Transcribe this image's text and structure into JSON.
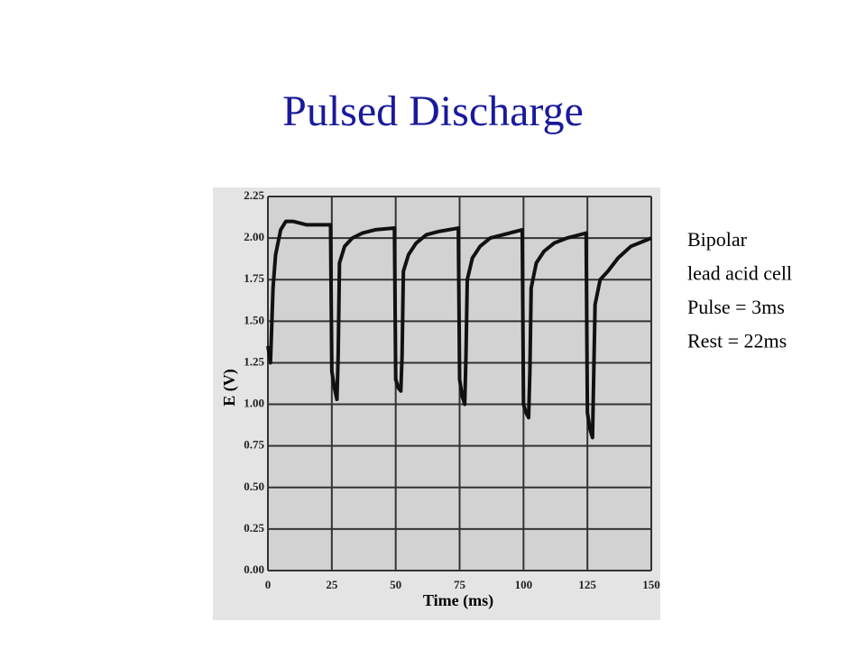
{
  "chart_data": {
    "type": "line",
    "title": "Pulsed Discharge",
    "x_label": "Time (ms)",
    "y_label": "E (V)",
    "annotations": [
      "Bipolar",
      "lead acid cell",
      "Pulse = 3ms",
      "Rest = 22ms"
    ],
    "color": "#111111",
    "grid": true,
    "xlim": [
      0,
      150
    ],
    "ylim": [
      0,
      2.25
    ],
    "xticks": [
      0,
      25,
      50,
      75,
      100,
      125,
      150
    ],
    "yticks": [
      {
        "value": 0,
        "label": "0.00"
      },
      0.25,
      {
        "value": 0.5,
        "label": "0.50"
      },
      0.75,
      {
        "value": 1,
        "label": "1.00"
      },
      1.25,
      {
        "value": 1.5,
        "label": "1.50"
      },
      1.75,
      {
        "value": 2,
        "label": "2.00"
      },
      2.25
    ],
    "x": [
      0,
      0.5,
      1,
      2,
      3,
      5,
      7,
      10,
      15,
      20,
      24.5,
      25,
      26,
      27,
      27.5,
      28,
      30,
      33,
      37,
      42,
      49.5,
      50,
      51,
      52,
      52.5,
      53,
      55,
      58,
      62,
      67,
      74.5,
      75,
      76,
      77,
      77.5,
      78,
      80,
      83,
      87,
      92,
      99.5,
      100,
      101,
      102,
      102.5,
      103,
      105,
      108,
      112,
      117,
      124.5,
      125,
      126,
      127,
      127.5,
      128,
      130,
      133,
      137,
      142,
      150
    ],
    "values": [
      1.35,
      1.3,
      1.25,
      1.7,
      1.9,
      2.05,
      2.1,
      2.1,
      2.08,
      2.08,
      2.08,
      1.2,
      1.1,
      1.03,
      1.3,
      1.85,
      1.95,
      2.0,
      2.03,
      2.05,
      2.06,
      1.15,
      1.1,
      1.08,
      1.3,
      1.8,
      1.9,
      1.97,
      2.02,
      2.04,
      2.06,
      1.15,
      1.05,
      1.0,
      1.3,
      1.75,
      1.88,
      1.95,
      2.0,
      2.02,
      2.05,
      1.0,
      0.95,
      0.92,
      1.2,
      1.7,
      1.85,
      1.92,
      1.97,
      2.0,
      2.03,
      0.95,
      0.85,
      0.8,
      1.2,
      1.6,
      1.75,
      1.8,
      1.88,
      1.95,
      2.0
    ]
  }
}
